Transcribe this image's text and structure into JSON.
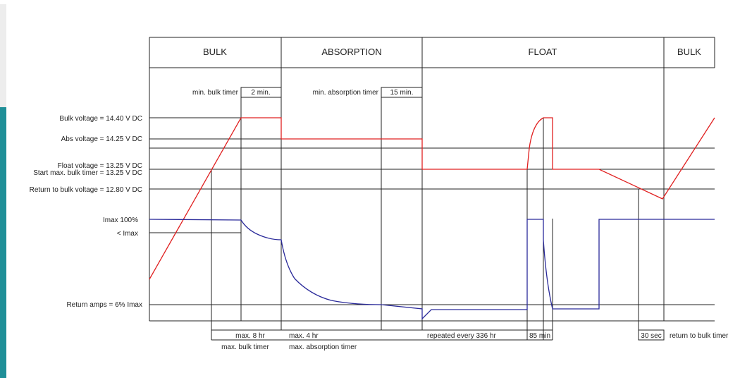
{
  "phases": [
    "BULK",
    "ABSORPTION",
    "FLOAT",
    "BULK"
  ],
  "timers": {
    "min_bulk_timer": "min. bulk timer",
    "min_bulk_value": "2 min.",
    "min_absorption_timer": "min. absorption timer",
    "min_absorption_value": "15 min."
  },
  "levels": {
    "bulk_voltage": "Bulk voltage = 14.40 V DC",
    "abs_voltage": "Abs voltage = 14.25 V DC",
    "float_voltage": "Float voltage = 13.25 V DC",
    "start_max_bulk": "Start max. bulk timer = 13.25 V DC",
    "return_bulk": "Return to bulk voltage = 12.80 V  DC",
    "imax": "Imax 100%",
    "lt_imax": "< Imax",
    "return_amps": "Return amps = 6% Imax"
  },
  "bottom": {
    "max_8hr": "max. 8 hr",
    "max_bulk_timer": "max. bulk timer",
    "max_4hr": "max. 4 hr",
    "max_absorption_timer": "max. absorption timer",
    "repeated": "repeated every 336 hr",
    "min85": "85 min",
    "sec30": "30 sec",
    "return_bulk_timer": "return to bulk timer"
  },
  "colors": {
    "voltage": "#e02020",
    "current": "#2a2a9a",
    "accent": "#1f8f98"
  }
}
